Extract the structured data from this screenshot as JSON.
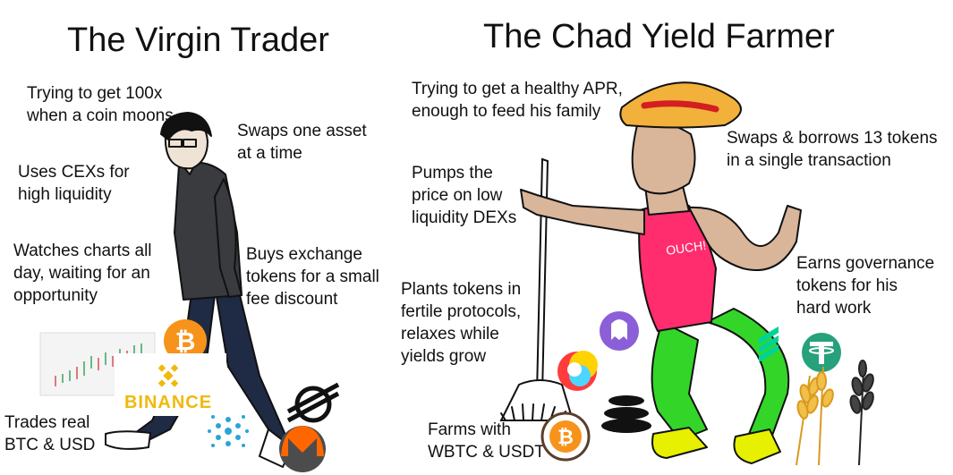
{
  "left": {
    "title": "The Virgin Trader",
    "captions": {
      "get_100x": "Trying to get 100x\nwhen a coin moons",
      "swaps_one": "Swaps one asset\nat a time",
      "uses_cex": "Uses CEXs for\nhigh liquidity",
      "watches_charts": "Watches charts all\nday, waiting for an\nopportunity",
      "buys_exchange": "Buys exchange\ntokens for a small\nfee discount",
      "trades_real": "Trades real\nBTC & USD"
    },
    "logos": {
      "binance_label": "BINANCE"
    }
  },
  "right": {
    "title": "The Chad Yield Farmer",
    "captions": {
      "healthy_apr": "Trying to get a healthy APR,\nenough to feed his family",
      "swaps_borrows": "Swaps & borrows 13 tokens\nin a single transaction",
      "pumps_price": "Pumps the\nprice on low\nliquidity DEXs",
      "earns_gov": "Earns governance\ntokens for his\nhard work",
      "plants_tokens": "Plants tokens in\nfertile protocols,\nrelaxes while\nyields grow",
      "farms_with": "Farms with\nWBTC & USDT"
    },
    "shirt_text": "OUCH!"
  },
  "colors": {
    "bitcoin": "#f7931a",
    "binance": "#f0b90b",
    "chad_skin": "#d9b59a",
    "chad_shirt": "#ff2d6e",
    "chad_pants": "#33d628",
    "chad_boots": "#e6f000",
    "hat": "#f2b13b",
    "tether": "#26a17b",
    "monero": "#ff6600"
  }
}
